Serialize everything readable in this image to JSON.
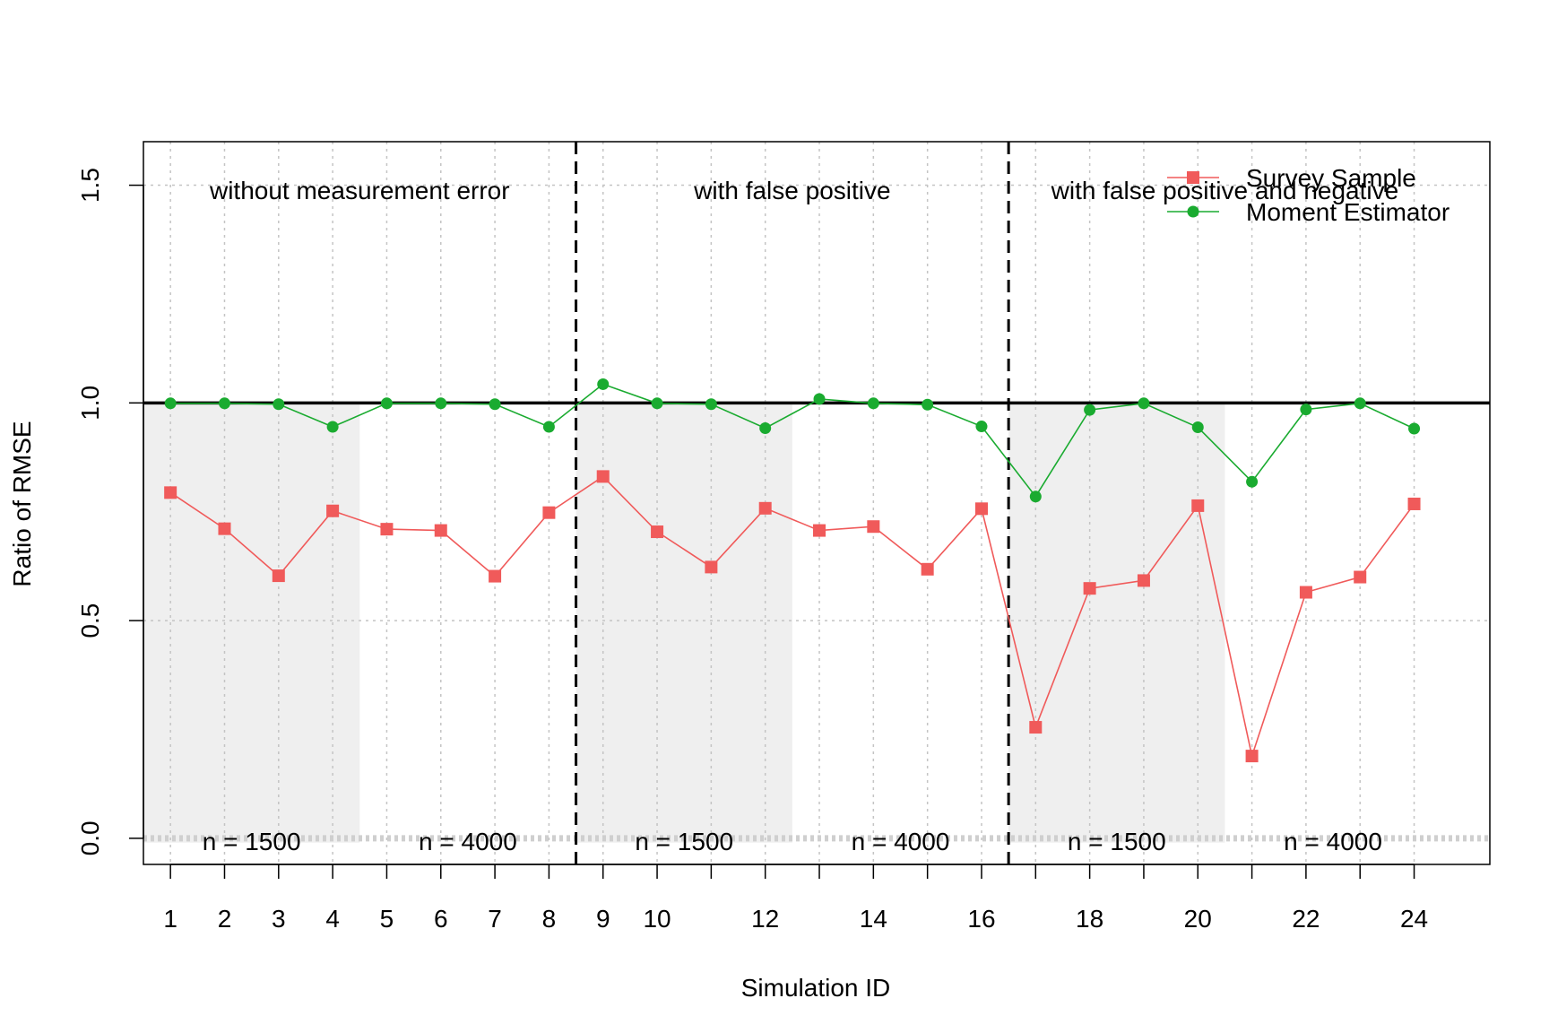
{
  "chart_data": {
    "type": "line",
    "xlabel": "Simulation ID",
    "ylabel": "Ratio of RMSE",
    "xlim": [
      0.5,
      25.4
    ],
    "ylim": [
      -0.06,
      1.6
    ],
    "x_ticks": [
      1,
      2,
      3,
      4,
      5,
      6,
      7,
      8,
      9,
      10,
      12,
      14,
      16,
      18,
      20,
      22,
      24
    ],
    "y_ticks": [
      0.0,
      0.5,
      1.0,
      1.5
    ],
    "y_tick_labels": [
      "0.0",
      "0.5",
      "1.0",
      "1.5"
    ],
    "grid": true,
    "reference_line": 1.0,
    "dividers": [
      8.5,
      16.5
    ],
    "shaded_ranges": [
      [
        0.5,
        4.5
      ],
      [
        8.5,
        12.5
      ],
      [
        16.5,
        20.5
      ]
    ],
    "sections": [
      {
        "label": "without measurement error",
        "center": 4.5
      },
      {
        "label": "with false positive",
        "center": 12.5
      },
      {
        "label": "with false positive and negative",
        "center": 20.5
      }
    ],
    "group_labels": [
      {
        "label": "n = 1500",
        "center": 2.5
      },
      {
        "label": "n = 4000",
        "center": 6.5
      },
      {
        "label": "n = 1500",
        "center": 10.5
      },
      {
        "label": "n = 4000",
        "center": 14.5
      },
      {
        "label": "n = 1500",
        "center": 18.5
      },
      {
        "label": "n = 4000",
        "center": 22.5
      }
    ],
    "x": [
      1,
      2,
      3,
      4,
      5,
      6,
      7,
      8,
      9,
      10,
      11,
      12,
      13,
      14,
      15,
      16,
      17,
      18,
      19,
      20,
      21,
      22,
      23,
      24
    ],
    "series": [
      {
        "name": "Survey Sample",
        "color": "#f05a5a",
        "marker": "square",
        "values": [
          0.794,
          0.711,
          0.603,
          0.752,
          0.71,
          0.707,
          0.602,
          0.748,
          0.831,
          0.704,
          0.623,
          0.758,
          0.707,
          0.716,
          0.618,
          0.757,
          0.255,
          0.574,
          0.592,
          0.764,
          0.189,
          0.565,
          0.6,
          0.768
        ]
      },
      {
        "name": "Moment Estimator",
        "color": "#1aab30",
        "marker": "circle",
        "values": [
          0.999,
          0.999,
          0.997,
          0.945,
          0.999,
          0.999,
          0.997,
          0.945,
          1.043,
          0.999,
          0.997,
          0.942,
          1.009,
          0.999,
          0.996,
          0.946,
          0.785,
          0.984,
          0.999,
          0.944,
          0.819,
          0.985,
          0.999,
          0.941
        ]
      }
    ],
    "legend": {
      "position": "top-right"
    }
  }
}
